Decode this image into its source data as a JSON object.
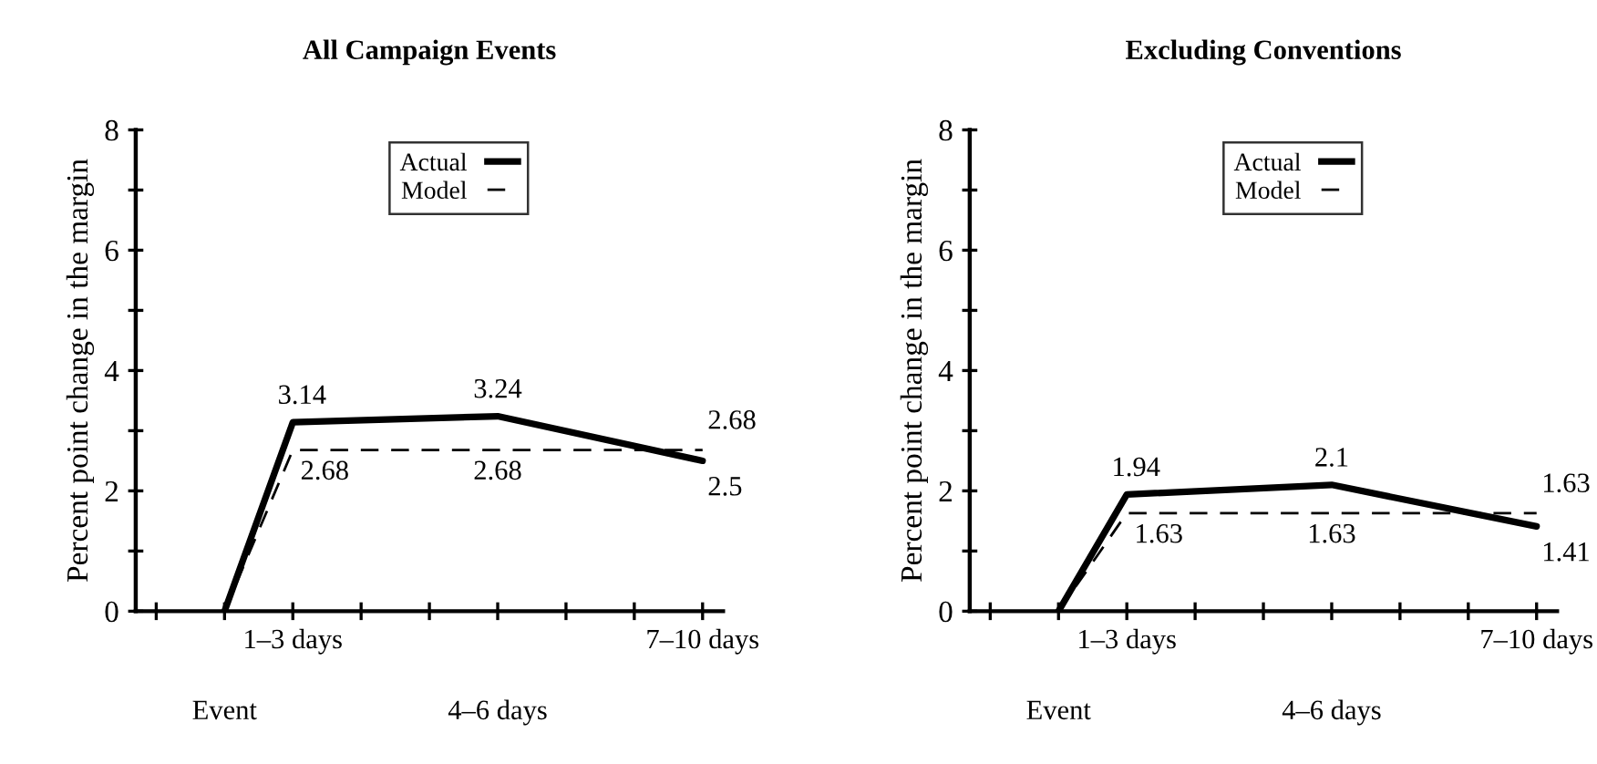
{
  "chart_data": [
    {
      "type": "line",
      "title": "All Campaign Events",
      "ylabel": "Percent point change in the margin",
      "categories": [
        null,
        "Event",
        "1–3 days",
        null,
        null,
        "4–6 days",
        null,
        null,
        "7–10 days"
      ],
      "ylim": [
        0,
        8
      ],
      "yticks": [
        0,
        {
          "value": 1,
          "label": null
        },
        2,
        {
          "value": 3,
          "label": null
        },
        4,
        {
          "value": 5,
          "label": null
        },
        6,
        {
          "value": 7,
          "label": null
        },
        8
      ],
      "legend": "top",
      "grid": false,
      "marker": "none",
      "series": [
        {
          "name": "Actual",
          "color": "#000000",
          "line_style": "solid",
          "values": [
            null,
            0,
            3.14,
            null,
            null,
            3.24,
            null,
            null,
            2.5
          ],
          "value_labels": [
            null,
            null,
            "3.14",
            null,
            null,
            "3.24",
            null,
            null,
            "2.5"
          ]
        },
        {
          "name": "Model",
          "color": "#000000",
          "line_style": "dashed",
          "values": [
            null,
            0,
            2.68,
            null,
            null,
            2.68,
            null,
            null,
            2.68
          ],
          "value_labels": [
            null,
            null,
            "2.68",
            null,
            null,
            "2.68",
            null,
            null,
            "2.68"
          ]
        }
      ]
    },
    {
      "type": "line",
      "title": "Excluding Conventions",
      "ylabel": "Percent point change in the margin",
      "categories": [
        null,
        "Event",
        "1–3 days",
        null,
        null,
        "4–6 days",
        null,
        null,
        "7–10 days"
      ],
      "ylim": [
        0,
        8
      ],
      "yticks": [
        0,
        {
          "value": 1,
          "label": null
        },
        2,
        {
          "value": 3,
          "label": null
        },
        4,
        {
          "value": 5,
          "label": null
        },
        6,
        {
          "value": 7,
          "label": null
        },
        8
      ],
      "legend": "top",
      "grid": false,
      "marker": "none",
      "series": [
        {
          "name": "Actual",
          "color": "#000000",
          "line_style": "solid",
          "values": [
            null,
            0,
            1.94,
            null,
            null,
            2.1,
            null,
            null,
            1.41
          ],
          "value_labels": [
            null,
            null,
            "1.94",
            null,
            null,
            "2.1",
            null,
            null,
            "1.41"
          ]
        },
        {
          "name": "Model",
          "color": "#000000",
          "line_style": "dashed",
          "values": [
            null,
            0,
            1.63,
            null,
            null,
            1.63,
            null,
            null,
            1.63
          ],
          "value_labels": [
            null,
            null,
            "1.63",
            null,
            null,
            "1.63",
            null,
            null,
            "1.63"
          ]
        }
      ]
    }
  ]
}
